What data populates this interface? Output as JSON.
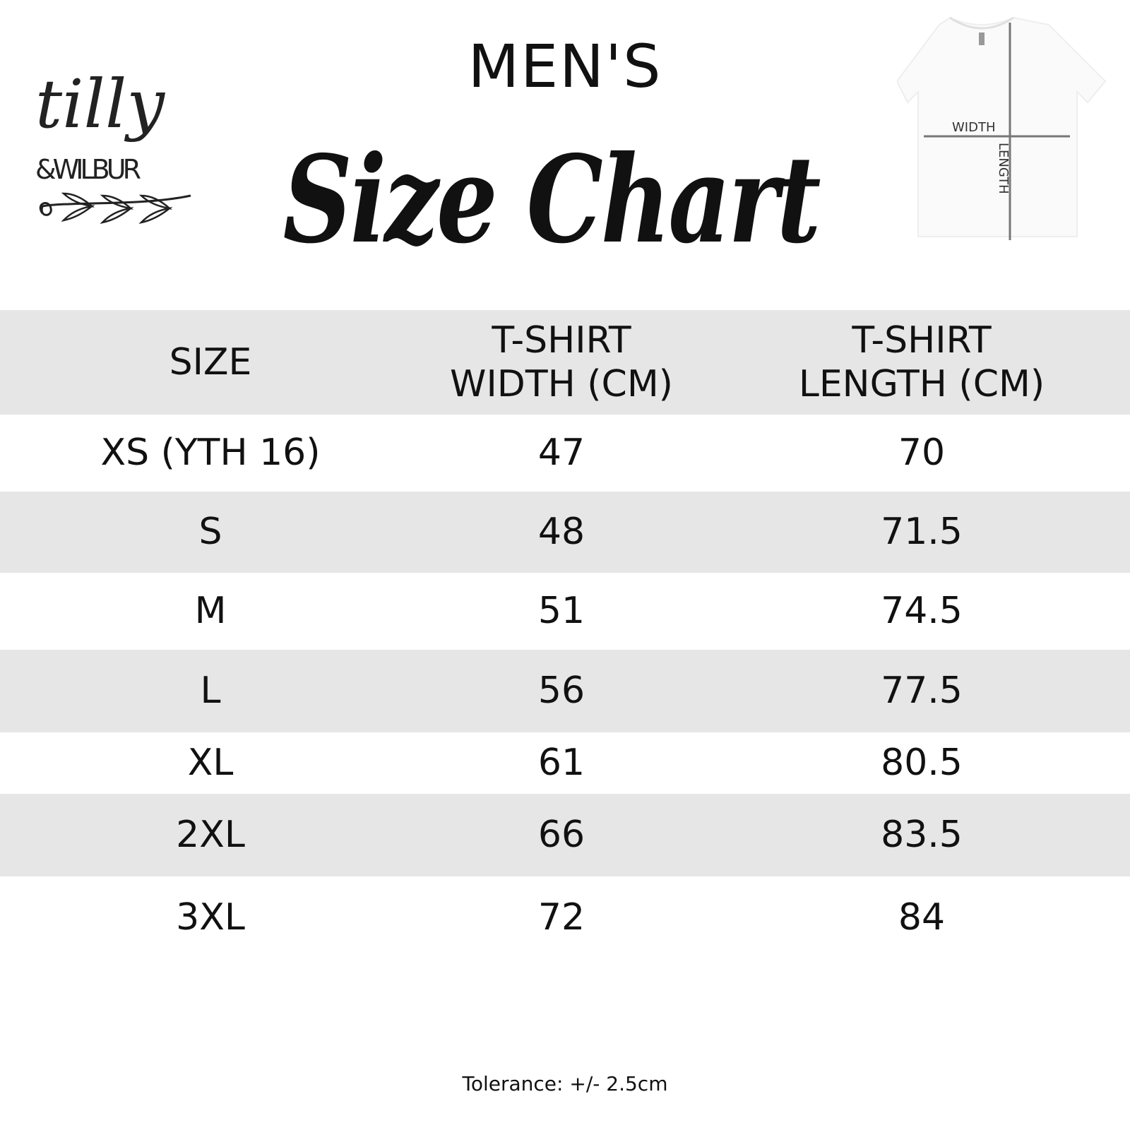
{
  "brand": {
    "logo_text": "tilly & WILBUR"
  },
  "header": {
    "title": "MEN'S",
    "subtitle": "Size Chart"
  },
  "diagram": {
    "width_label": "WIDTH",
    "length_label": "LENGTH"
  },
  "table": {
    "columns": [
      "SIZE",
      "T-SHIRT WIDTH (CM)",
      "T-SHIRT LENGTH (CM)"
    ],
    "header_lines": [
      [
        "SIZE"
      ],
      [
        "T-SHIRT",
        "WIDTH (CM)"
      ],
      [
        "T-SHIRT",
        "LENGTH (CM)"
      ]
    ],
    "rows": [
      [
        "XS (YTH 16)",
        "47",
        "70"
      ],
      [
        "S",
        "48",
        "71.5"
      ],
      [
        "M",
        "51",
        "74.5"
      ],
      [
        "L",
        "56",
        "77.5"
      ],
      [
        "XL",
        "61",
        "80.5"
      ],
      [
        "2XL",
        "66",
        "83.5"
      ],
      [
        "3XL",
        "72",
        "84"
      ]
    ]
  },
  "footer": {
    "tolerance": "Tolerance: +/- 2.5cm"
  },
  "colors": {
    "stripe": "#e6e6e6",
    "text": "#111111"
  }
}
